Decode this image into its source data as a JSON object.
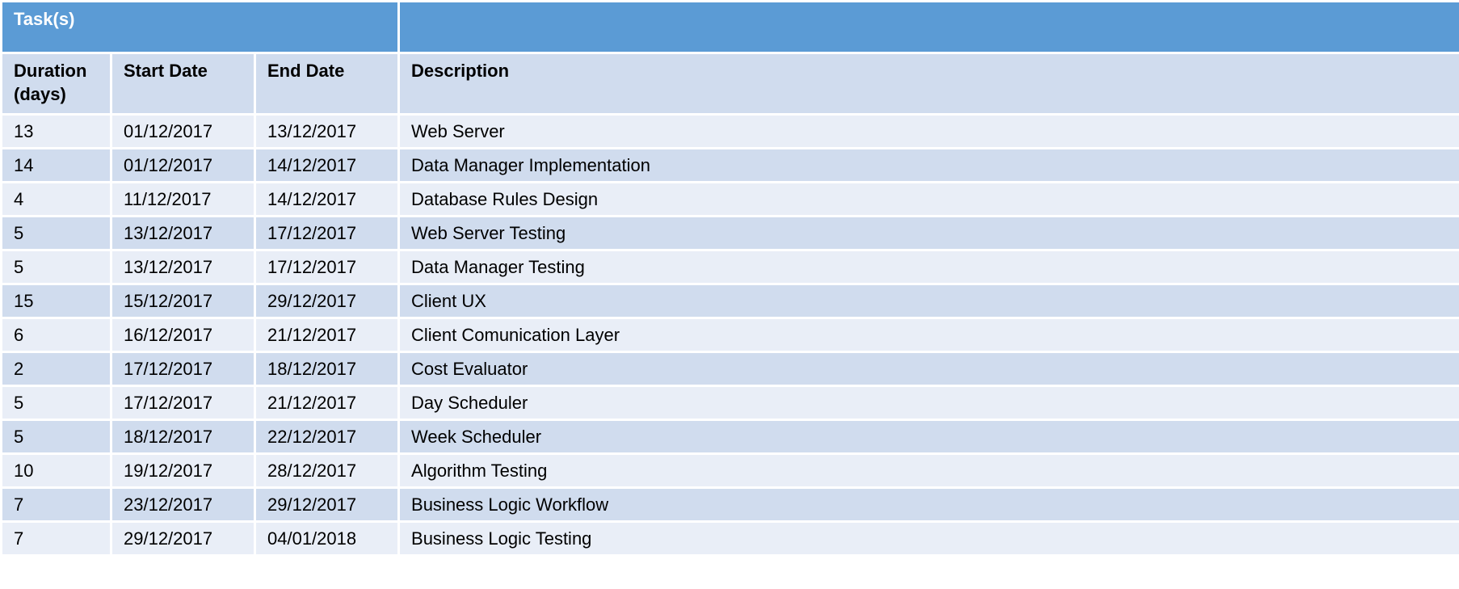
{
  "table": {
    "title": "Task(s)",
    "columns": [
      "Duration (days)",
      "Start Date",
      "End Date",
      "Description"
    ],
    "rows": [
      [
        "13",
        "01/12/2017",
        "13/12/2017",
        "Web Server"
      ],
      [
        "14",
        "01/12/2017",
        "14/12/2017",
        "Data Manager Implementation"
      ],
      [
        "4",
        "11/12/2017",
        "14/12/2017",
        "Database Rules Design"
      ],
      [
        "5",
        "13/12/2017",
        "17/12/2017",
        "Web Server Testing"
      ],
      [
        "5",
        "13/12/2017",
        "17/12/2017",
        "Data Manager Testing"
      ],
      [
        "15",
        "15/12/2017",
        "29/12/2017",
        "Client UX"
      ],
      [
        "6",
        "16/12/2017",
        "21/12/2017",
        "Client Comunication Layer"
      ],
      [
        "2",
        "17/12/2017",
        "18/12/2017",
        "Cost Evaluator"
      ],
      [
        "5",
        "17/12/2017",
        "21/12/2017",
        "Day Scheduler"
      ],
      [
        "5",
        "18/12/2017",
        "22/12/2017",
        "Week Scheduler"
      ],
      [
        "10",
        "19/12/2017",
        "28/12/2017",
        "Algorithm Testing"
      ],
      [
        "7",
        "23/12/2017",
        "29/12/2017",
        "Business Logic Workflow"
      ],
      [
        "7",
        "29/12/2017",
        "04/01/2018",
        "Business Logic Testing"
      ]
    ]
  },
  "colors": {
    "title_bg": "#5b9bd5",
    "header_bg": "#d0dcee",
    "row_light": "#e9eef7",
    "row_dark": "#d0dcee"
  }
}
